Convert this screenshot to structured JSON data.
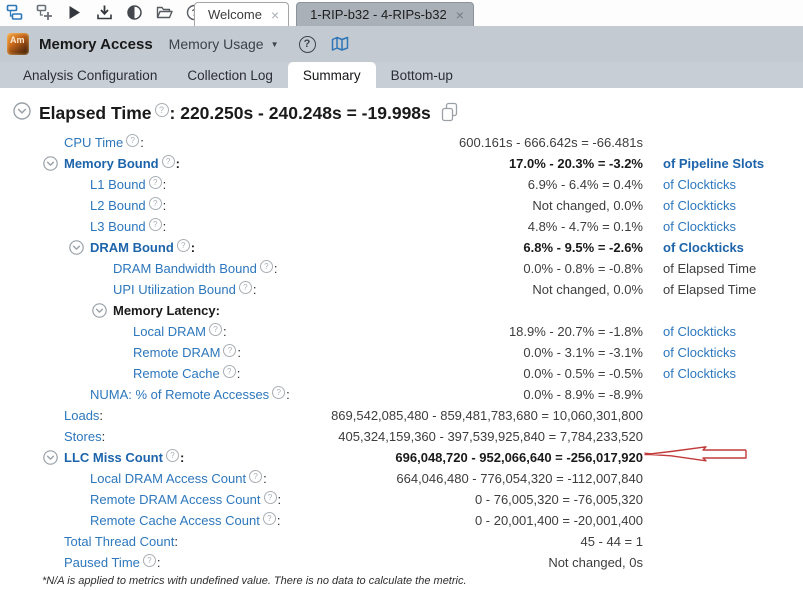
{
  "colors": {
    "accent_blue": "#2d77bd",
    "bold_blue": "#1d64ab",
    "band_gray": "#c4cad2",
    "inactive_tab_gray": "#a9b0b8",
    "arrow_red": "#c23b3b",
    "logo_orange": "#d97a20"
  },
  "window": {
    "toolbar_icons": [
      "configure-project-icon",
      "new-analysis-icon",
      "start-analysis-icon",
      "import-result-icon",
      "compare-results-icon",
      "open-result-icon",
      "help-icon"
    ],
    "doc_tabs": [
      {
        "label": "Welcome",
        "variant": "light",
        "close": "×"
      },
      {
        "label": "1-RIP-b32 - 4-RIPs-b32",
        "variant": "dark",
        "close": "×"
      }
    ]
  },
  "appbar": {
    "logo_text": "Am",
    "app_title": "Memory Access",
    "viewpoint_label": "Memory Usage",
    "help_glyph": "?"
  },
  "nav_tabs": {
    "items": [
      "Analysis Configuration",
      "Collection Log",
      "Summary",
      "Bottom-up"
    ],
    "active": "Summary"
  },
  "summary": {
    "elapsed": {
      "label": "Elapsed Time",
      "value": ": 220.250s - 240.248s = -19.998s"
    },
    "rows": [
      {
        "label": "CPU Time",
        "level": 1,
        "help": true,
        "expand": false,
        "style": "link",
        "value": "600.161s - 666.642s = -66.481s",
        "value_bold": false,
        "unit": "",
        "unit_style": "",
        "arrow": false
      },
      {
        "label": "Memory Bound",
        "level": 1,
        "help": true,
        "expand": true,
        "style": "boldlink",
        "value": "17.0% - 20.3% = -3.2%",
        "value_bold": true,
        "unit": "of Pipeline Slots",
        "unit_style": "boldlink",
        "arrow": false
      },
      {
        "label": "L1 Bound",
        "level": 2,
        "help": true,
        "expand": false,
        "style": "link",
        "value": "6.9% - 6.4% = 0.4%",
        "value_bold": false,
        "unit": "of Clockticks",
        "unit_style": "link",
        "arrow": false
      },
      {
        "label": "L2 Bound",
        "level": 2,
        "help": true,
        "expand": false,
        "style": "link",
        "value": "Not changed, 0.0%",
        "value_bold": false,
        "unit": "of Clockticks",
        "unit_style": "link",
        "arrow": false
      },
      {
        "label": "L3 Bound",
        "level": 2,
        "help": true,
        "expand": false,
        "style": "link",
        "value": "4.8% - 4.7% = 0.1%",
        "value_bold": false,
        "unit": "of Clockticks",
        "unit_style": "link",
        "arrow": false
      },
      {
        "label": "DRAM Bound",
        "level": 2,
        "help": true,
        "expand": true,
        "style": "boldlink",
        "value": "6.8% - 9.5% = -2.6%",
        "value_bold": true,
        "unit": "of Clockticks",
        "unit_style": "boldlink",
        "arrow": false
      },
      {
        "label": "DRAM Bandwidth Bound",
        "level": 3,
        "help": true,
        "expand": false,
        "style": "link",
        "value": "0.0% - 0.8% = -0.8%",
        "value_bold": false,
        "unit": "of Elapsed Time",
        "unit_style": "plain",
        "arrow": false
      },
      {
        "label": "UPI Utilization Bound",
        "level": 3,
        "help": true,
        "expand": false,
        "style": "link",
        "value": "Not changed, 0.0%",
        "value_bold": false,
        "unit": "of Elapsed Time",
        "unit_style": "plain",
        "arrow": false
      },
      {
        "label": "Memory Latency",
        "level": 3,
        "help": false,
        "expand": true,
        "style": "plainbold",
        "value": "",
        "value_bold": false,
        "unit": "",
        "unit_style": "",
        "arrow": false
      },
      {
        "label": "Local DRAM",
        "level": 4,
        "help": true,
        "expand": false,
        "style": "link",
        "value": "18.9% - 20.7% = -1.8%",
        "value_bold": false,
        "unit": "of Clockticks",
        "unit_style": "link",
        "arrow": false
      },
      {
        "label": "Remote DRAM",
        "level": 4,
        "help": true,
        "expand": false,
        "style": "link",
        "value": "0.0% - 3.1% = -3.1%",
        "value_bold": false,
        "unit": "of Clockticks",
        "unit_style": "link",
        "arrow": false
      },
      {
        "label": "Remote Cache",
        "level": 4,
        "help": true,
        "expand": false,
        "style": "link",
        "value": "0.0% - 0.5% = -0.5%",
        "value_bold": false,
        "unit": "of Clockticks",
        "unit_style": "link",
        "arrow": false
      },
      {
        "label": "NUMA: % of Remote Accesses",
        "level": 2,
        "help": true,
        "expand": false,
        "style": "link",
        "value": "0.0% - 8.9% = -8.9%",
        "value_bold": false,
        "unit": "",
        "unit_style": "",
        "arrow": false
      },
      {
        "label": "Loads",
        "level": 1,
        "help": false,
        "expand": false,
        "style": "link",
        "value": "869,542,085,480 - 859,481,783,680 = 10,060,301,800",
        "value_bold": false,
        "unit": "",
        "unit_style": "",
        "arrow": false
      },
      {
        "label": "Stores",
        "level": 1,
        "help": false,
        "expand": false,
        "style": "link",
        "value": "405,324,159,360 - 397,539,925,840 = 7,784,233,520",
        "value_bold": false,
        "unit": "",
        "unit_style": "",
        "arrow": false
      },
      {
        "label": "LLC Miss Count",
        "level": 1,
        "help": true,
        "expand": true,
        "style": "boldlink",
        "value": "696,048,720 - 952,066,640 = -256,017,920",
        "value_bold": true,
        "unit": "",
        "unit_style": "",
        "arrow": true
      },
      {
        "label": "Local DRAM Access Count",
        "level": 2,
        "help": true,
        "expand": false,
        "style": "link",
        "value": "664,046,480 - 776,054,320 = -112,007,840",
        "value_bold": false,
        "unit": "",
        "unit_style": "",
        "arrow": false
      },
      {
        "label": "Remote DRAM Access Count",
        "level": 2,
        "help": true,
        "expand": false,
        "style": "link",
        "value": "0 - 76,005,320 = -76,005,320",
        "value_bold": false,
        "unit": "",
        "unit_style": "",
        "arrow": false
      },
      {
        "label": "Remote Cache Access Count",
        "level": 2,
        "help": true,
        "expand": false,
        "style": "link",
        "value": "0 - 20,001,400 = -20,001,400",
        "value_bold": false,
        "unit": "",
        "unit_style": "",
        "arrow": false
      },
      {
        "label": "Total Thread Count",
        "level": 1,
        "help": false,
        "expand": false,
        "style": "link",
        "value": "45 - 44 = 1",
        "value_bold": false,
        "unit": "",
        "unit_style": "",
        "arrow": false
      },
      {
        "label": "Paused Time",
        "level": 1,
        "help": true,
        "expand": false,
        "style": "link",
        "value": "Not changed, 0s",
        "value_bold": false,
        "unit": "",
        "unit_style": "",
        "arrow": false
      }
    ],
    "footnote": "*N/A is applied to metrics with undefined value. There is no data to calculate the metric."
  }
}
